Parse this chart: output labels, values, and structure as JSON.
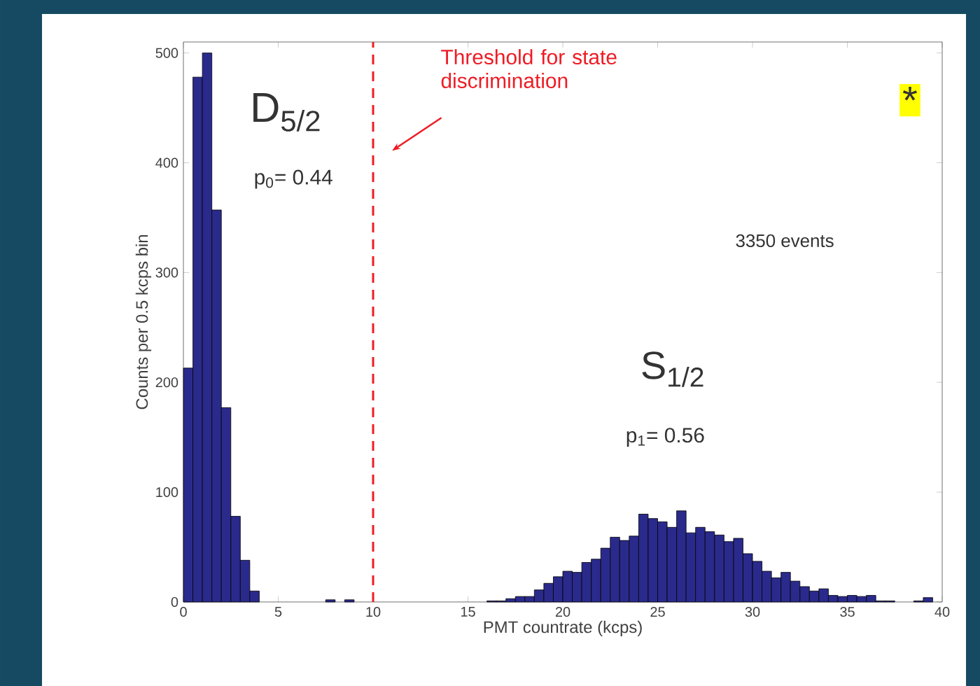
{
  "chart_data": {
    "type": "histogram",
    "xlabel": "PMT countrate (kcps)",
    "ylabel": "Counts per 0.5 kcps bin",
    "bins": [
      0,
      0.5,
      1,
      1.5,
      2,
      2.5,
      3,
      3.5,
      4,
      4.5,
      5,
      5.5,
      6,
      6.5,
      7,
      7.5,
      8,
      8.5,
      9,
      9.5,
      10,
      10.5,
      11,
      11.5,
      12,
      12.5,
      13,
      13.5,
      14,
      14.5,
      15,
      15.5,
      16,
      16.5,
      17,
      17.5,
      18,
      18.5,
      19,
      19.5,
      20,
      20.5,
      21,
      21.5,
      22,
      22.5,
      23,
      23.5,
      24,
      24.5,
      25,
      25.5,
      26,
      26.5,
      27,
      27.5,
      28,
      28.5,
      29,
      29.5,
      30,
      30.5,
      31,
      31.5,
      32,
      32.5,
      33,
      33.5,
      34,
      34.5,
      35,
      35.5,
      36,
      36.5,
      37,
      37.5,
      38,
      38.5,
      39,
      39.5,
      40
    ],
    "values": [
      213,
      478,
      500,
      357,
      177,
      78,
      38,
      10,
      0,
      0,
      0,
      0,
      0,
      0,
      0,
      2,
      0,
      2,
      0,
      0,
      0,
      0,
      0,
      0,
      0,
      0,
      0,
      0,
      0,
      0,
      0,
      0,
      1,
      1,
      3,
      5,
      5,
      11,
      17,
      23,
      28,
      27,
      36,
      39,
      49,
      59,
      56,
      60,
      80,
      76,
      73,
      68,
      83,
      63,
      68,
      64,
      61,
      55,
      58,
      44,
      37,
      28,
      22,
      27,
      19,
      14,
      10,
      12,
      6,
      5,
      6,
      5,
      6,
      1,
      1,
      0,
      0,
      1,
      4,
      0
    ],
    "color": "#2a2a8c",
    "xlim": [
      0,
      40
    ],
    "ylim": [
      0,
      510
    ],
    "xticks": [
      0,
      5,
      10,
      15,
      20,
      25,
      30,
      35,
      40
    ],
    "yticks": [
      0,
      100,
      200,
      300,
      400,
      500
    ],
    "grid": false,
    "ref_lines": [
      {
        "axis": "x",
        "value": 10,
        "label": "Threshold for state discrimination",
        "color": "#ee1c25",
        "line_style": "dashed"
      }
    ],
    "annotations": [
      "D$_{5/2}$",
      "p$_{0}$= 0.44",
      "3350 events",
      "S$_{1/2}$",
      "p$_{1}$= 0.56",
      "*"
    ]
  }
}
